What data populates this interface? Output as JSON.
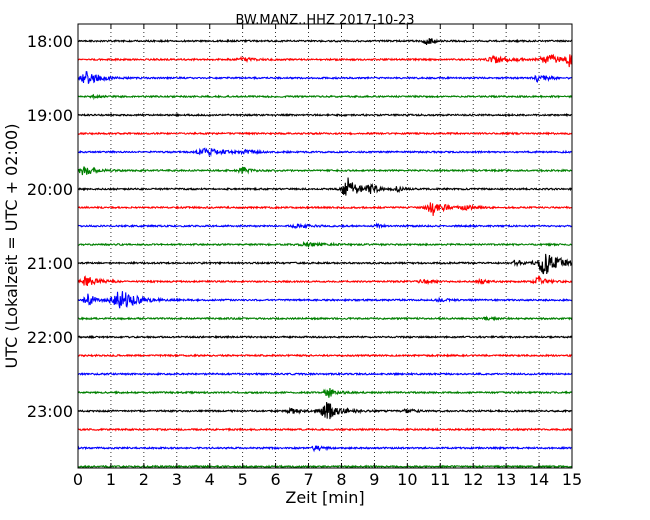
{
  "chart_data": {
    "type": "line",
    "title": "BW.MANZ..HHZ 2017-10-23",
    "xlabel": "Zeit  [min]",
    "ylabel": "UTC (Lokalzeit = UTC + 02:00)",
    "xlim": [
      0,
      15
    ],
    "x_ticks": [
      "0",
      "1",
      "2",
      "3",
      "4",
      "5",
      "6",
      "7",
      "8",
      "9",
      "10",
      "11",
      "12",
      "13",
      "14",
      "15"
    ],
    "y_tick_labels": [
      "18:00",
      "19:00",
      "20:00",
      "21:00",
      "22:00",
      "23:00"
    ],
    "vertical_grid": "dotted",
    "colors": [
      "#000000",
      "#ff0000",
      "#0000ff",
      "#008000"
    ],
    "traces": [
      {
        "start": "18:00",
        "color": "#000000",
        "bursts": [
          {
            "t": 10.6,
            "amp": 0.25,
            "w": 0.4
          }
        ]
      },
      {
        "start": "18:15",
        "color": "#ff0000",
        "bursts": [
          {
            "t": 5.0,
            "amp": 0.15,
            "w": 0.5
          },
          {
            "t": 12.7,
            "amp": 0.25,
            "w": 0.8
          },
          {
            "t": 14.3,
            "amp": 0.4,
            "w": 0.8
          },
          {
            "t": 14.9,
            "amp": 0.5,
            "w": 0.3
          }
        ]
      },
      {
        "start": "18:30",
        "color": "#0000ff",
        "bursts": [
          {
            "t": 0.3,
            "amp": 0.6,
            "w": 0.6
          },
          {
            "t": 14.0,
            "amp": 0.3,
            "w": 0.5
          }
        ]
      },
      {
        "start": "18:45",
        "color": "#008000",
        "bursts": [
          {
            "t": 0.5,
            "amp": 0.1,
            "w": 0.3
          }
        ]
      },
      {
        "start": "19:00",
        "color": "#000000",
        "bursts": []
      },
      {
        "start": "19:15",
        "color": "#ff0000",
        "bursts": []
      },
      {
        "start": "19:30",
        "color": "#0000ff",
        "bursts": [
          {
            "t": 3.9,
            "amp": 0.3,
            "w": 0.8
          },
          {
            "t": 5.1,
            "amp": 0.15,
            "w": 0.5
          }
        ]
      },
      {
        "start": "19:45",
        "color": "#008000",
        "bursts": [
          {
            "t": 0.2,
            "amp": 0.35,
            "w": 0.6
          },
          {
            "t": 5.0,
            "amp": 0.25,
            "w": 0.4
          }
        ]
      },
      {
        "start": "20:00",
        "color": "#000000",
        "bursts": [
          {
            "t": 8.2,
            "amp": 0.9,
            "w": 0.6
          },
          {
            "t": 8.9,
            "amp": 0.3,
            "w": 0.4
          },
          {
            "t": 9.7,
            "amp": 0.2,
            "w": 0.3
          }
        ]
      },
      {
        "start": "20:15",
        "color": "#ff0000",
        "bursts": [
          {
            "t": 10.8,
            "amp": 0.6,
            "w": 0.6
          },
          {
            "t": 11.8,
            "amp": 0.15,
            "w": 0.5
          }
        ]
      },
      {
        "start": "20:30",
        "color": "#0000ff",
        "bursts": [
          {
            "t": 6.7,
            "amp": 0.15,
            "w": 0.6
          },
          {
            "t": 9.1,
            "amp": 0.12,
            "w": 0.3
          }
        ]
      },
      {
        "start": "20:45",
        "color": "#008000",
        "bursts": [
          {
            "t": 7.0,
            "amp": 0.12,
            "w": 1.0
          }
        ]
      },
      {
        "start": "21:00",
        "color": "#000000",
        "bursts": [
          {
            "t": 14.2,
            "amp": 0.85,
            "w": 0.9
          },
          {
            "t": 13.3,
            "amp": 0.2,
            "w": 0.5
          }
        ]
      },
      {
        "start": "21:15",
        "color": "#ff0000",
        "bursts": [
          {
            "t": 0.3,
            "amp": 0.45,
            "w": 0.6
          },
          {
            "t": 10.5,
            "amp": 0.15,
            "w": 0.5
          },
          {
            "t": 12.3,
            "amp": 0.15,
            "w": 0.5
          },
          {
            "t": 14.0,
            "amp": 0.3,
            "w": 0.5
          }
        ]
      },
      {
        "start": "21:30",
        "color": "#0000ff",
        "bursts": [
          {
            "t": 0.3,
            "amp": 0.5,
            "w": 0.4
          },
          {
            "t": 1.3,
            "amp": 0.75,
            "w": 0.9
          },
          {
            "t": 11.0,
            "amp": 0.15,
            "w": 0.4
          }
        ]
      },
      {
        "start": "21:45",
        "color": "#008000",
        "bursts": [
          {
            "t": 12.4,
            "amp": 0.12,
            "w": 0.3
          }
        ]
      },
      {
        "start": "22:00",
        "color": "#000000",
        "bursts": []
      },
      {
        "start": "22:15",
        "color": "#ff0000",
        "bursts": []
      },
      {
        "start": "22:30",
        "color": "#0000ff",
        "bursts": []
      },
      {
        "start": "22:45",
        "color": "#008000",
        "bursts": [
          {
            "t": 7.6,
            "amp": 0.4,
            "w": 0.4
          }
        ]
      },
      {
        "start": "23:00",
        "color": "#000000",
        "bursts": [
          {
            "t": 7.6,
            "amp": 0.75,
            "w": 0.7
          },
          {
            "t": 6.5,
            "amp": 0.2,
            "w": 0.5
          },
          {
            "t": 10.0,
            "amp": 0.12,
            "w": 0.5
          }
        ]
      },
      {
        "start": "23:15",
        "color": "#ff0000",
        "bursts": []
      },
      {
        "start": "23:30",
        "color": "#0000ff",
        "bursts": [
          {
            "t": 7.2,
            "amp": 0.3,
            "w": 0.3
          }
        ]
      },
      {
        "start": "23:45",
        "color": "#008000",
        "bursts": []
      }
    ]
  }
}
